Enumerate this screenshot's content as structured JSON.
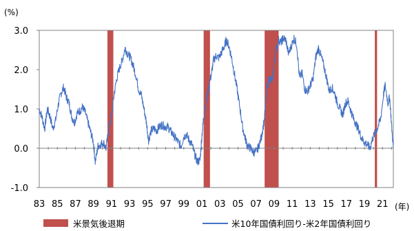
{
  "chart_data": {
    "type": "line",
    "y_unit_label": "(%)",
    "x_unit_label": "(年)",
    "ylim": [
      -1.0,
      3.0
    ],
    "yticks": [
      "3.0",
      "2.0",
      "1.0",
      "0.0",
      "-1.0"
    ],
    "xlim": [
      1983,
      2022.2
    ],
    "xticks": [
      "83",
      "85",
      "87",
      "89",
      "91",
      "93",
      "95",
      "97",
      "99",
      "01",
      "03",
      "05",
      "07",
      "09",
      "11",
      "13",
      "15",
      "17",
      "19",
      "21"
    ],
    "grid": false,
    "legend_position": "bottom",
    "colors": {
      "series": "#4472C4",
      "recession": "#C0504D",
      "frame": "#808080"
    },
    "recession": {
      "name": "米景気後退期",
      "periods": [
        [
          1990.55,
          1991.2
        ],
        [
          2001.2,
          2001.9
        ],
        [
          2007.95,
          2009.5
        ],
        [
          2020.15,
          2020.4
        ]
      ]
    },
    "series": [
      {
        "name": "米10年国債利回り-米2年国債利回り",
        "points": [
          [
            1983.0,
            1.0
          ],
          [
            1983.3,
            0.8
          ],
          [
            1983.6,
            0.5
          ],
          [
            1983.9,
            1.0
          ],
          [
            1984.2,
            0.8
          ],
          [
            1984.5,
            0.5
          ],
          [
            1984.8,
            0.7
          ],
          [
            1985.1,
            1.1
          ],
          [
            1985.4,
            1.4
          ],
          [
            1985.7,
            1.55
          ],
          [
            1986.0,
            1.3
          ],
          [
            1986.3,
            1.15
          ],
          [
            1986.6,
            0.8
          ],
          [
            1986.9,
            0.65
          ],
          [
            1987.2,
            0.9
          ],
          [
            1987.5,
            0.95
          ],
          [
            1987.8,
            1.05
          ],
          [
            1988.1,
            0.9
          ],
          [
            1988.4,
            0.65
          ],
          [
            1988.7,
            0.4
          ],
          [
            1989.0,
            0.15
          ],
          [
            1989.2,
            -0.35
          ],
          [
            1989.5,
            0.05
          ],
          [
            1989.8,
            0.1
          ],
          [
            1990.1,
            0.15
          ],
          [
            1990.4,
            0.0
          ],
          [
            1990.7,
            0.5
          ],
          [
            1991.0,
            0.8
          ],
          [
            1991.3,
            1.4
          ],
          [
            1991.6,
            1.8
          ],
          [
            1991.9,
            2.05
          ],
          [
            1992.2,
            2.25
          ],
          [
            1992.5,
            2.55
          ],
          [
            1992.8,
            2.4
          ],
          [
            1993.1,
            2.3
          ],
          [
            1993.4,
            2.1
          ],
          [
            1993.7,
            1.85
          ],
          [
            1994.0,
            1.5
          ],
          [
            1994.3,
            1.35
          ],
          [
            1994.6,
            1.0
          ],
          [
            1994.9,
            0.6
          ],
          [
            1995.1,
            0.2
          ],
          [
            1995.4,
            0.45
          ],
          [
            1995.7,
            0.5
          ],
          [
            1996.0,
            0.45
          ],
          [
            1996.3,
            0.55
          ],
          [
            1996.6,
            0.6
          ],
          [
            1996.9,
            0.55
          ],
          [
            1997.2,
            0.55
          ],
          [
            1997.5,
            0.45
          ],
          [
            1997.8,
            0.35
          ],
          [
            1998.1,
            0.25
          ],
          [
            1998.4,
            0.15
          ],
          [
            1998.7,
            0.05
          ],
          [
            1999.0,
            0.3
          ],
          [
            1999.3,
            0.35
          ],
          [
            1999.6,
            0.2
          ],
          [
            1999.9,
            0.1
          ],
          [
            2000.2,
            -0.15
          ],
          [
            2000.5,
            -0.35
          ],
          [
            2000.8,
            -0.3
          ],
          [
            2001.0,
            0.3
          ],
          [
            2001.2,
            0.8
          ],
          [
            2001.5,
            1.2
          ],
          [
            2001.8,
            1.6
          ],
          [
            2002.1,
            1.95
          ],
          [
            2002.3,
            2.25
          ],
          [
            2002.6,
            2.35
          ],
          [
            2002.9,
            2.3
          ],
          [
            2003.2,
            2.45
          ],
          [
            2003.5,
            2.6
          ],
          [
            2003.7,
            2.75
          ],
          [
            2004.0,
            2.6
          ],
          [
            2004.3,
            2.3
          ],
          [
            2004.6,
            1.9
          ],
          [
            2004.9,
            1.5
          ],
          [
            2005.2,
            1.05
          ],
          [
            2005.5,
            0.55
          ],
          [
            2005.8,
            0.25
          ],
          [
            2006.1,
            0.05
          ],
          [
            2006.4,
            0.0
          ],
          [
            2006.7,
            -0.1
          ],
          [
            2007.0,
            -0.1
          ],
          [
            2007.3,
            0.05
          ],
          [
            2007.6,
            0.3
          ],
          [
            2007.9,
            0.7
          ],
          [
            2008.2,
            1.5
          ],
          [
            2008.5,
            1.8
          ],
          [
            2008.8,
            1.7
          ],
          [
            2009.0,
            2.1
          ],
          [
            2009.2,
            2.5
          ],
          [
            2009.5,
            2.75
          ],
          [
            2009.8,
            2.7
          ],
          [
            2010.0,
            2.8
          ],
          [
            2010.3,
            2.75
          ],
          [
            2010.6,
            2.4
          ],
          [
            2010.9,
            2.6
          ],
          [
            2011.2,
            2.8
          ],
          [
            2011.5,
            2.65
          ],
          [
            2011.8,
            1.8
          ],
          [
            2012.1,
            1.9
          ],
          [
            2012.4,
            1.5
          ],
          [
            2012.7,
            1.45
          ],
          [
            2013.0,
            1.6
          ],
          [
            2013.3,
            1.75
          ],
          [
            2013.6,
            2.3
          ],
          [
            2013.9,
            2.55
          ],
          [
            2014.2,
            2.35
          ],
          [
            2014.5,
            2.1
          ],
          [
            2014.8,
            1.8
          ],
          [
            2015.1,
            1.45
          ],
          [
            2015.4,
            1.55
          ],
          [
            2015.7,
            1.4
          ],
          [
            2016.0,
            1.15
          ],
          [
            2016.3,
            1.0
          ],
          [
            2016.6,
            0.85
          ],
          [
            2016.9,
            1.15
          ],
          [
            2017.2,
            1.2
          ],
          [
            2017.5,
            0.95
          ],
          [
            2017.8,
            0.75
          ],
          [
            2018.1,
            0.6
          ],
          [
            2018.4,
            0.45
          ],
          [
            2018.7,
            0.25
          ],
          [
            2019.0,
            0.15
          ],
          [
            2019.3,
            0.1
          ],
          [
            2019.6,
            0.0
          ],
          [
            2019.9,
            0.25
          ],
          [
            2020.2,
            0.4
          ],
          [
            2020.5,
            0.55
          ],
          [
            2020.8,
            0.75
          ],
          [
            2021.1,
            1.35
          ],
          [
            2021.3,
            1.6
          ],
          [
            2021.6,
            1.15
          ],
          [
            2021.8,
            1.3
          ],
          [
            2022.0,
            0.6
          ],
          [
            2022.2,
            0.0
          ]
        ]
      }
    ]
  }
}
